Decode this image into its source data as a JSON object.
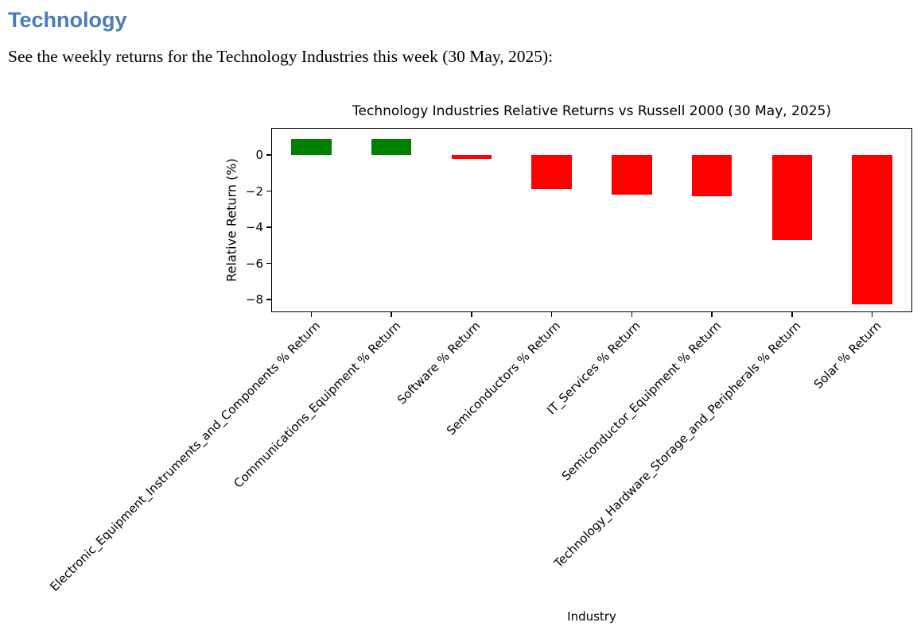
{
  "page": {
    "heading": "Technology",
    "heading_color": "#4a7cbd",
    "intro": "See the weekly returns for the Technology Industries this week (30 May, 2025):"
  },
  "chart_data": {
    "type": "bar",
    "title": "Technology Industries Relative Returns vs Russell 2000 (30 May, 2025)",
    "xlabel": "Industry",
    "ylabel": "Relative Return (%)",
    "categories": [
      "Electronic_Equipment_Instruments_and_Components % Return",
      "Communications_Equipment % Return",
      "Software % Return",
      "Semiconductors % Return",
      "IT_Services % Return",
      "Semiconductor_Equipment % Return",
      "Technology_Hardware_Storage_and_Peripherals % Return",
      "Solar % Return"
    ],
    "values": [
      0.9,
      0.87,
      -0.2,
      -1.9,
      -2.2,
      -2.3,
      -4.7,
      -8.25
    ],
    "yticks": [
      0,
      -2,
      -4,
      -6,
      -8
    ],
    "ylim": [
      -8.7,
      1.5
    ],
    "bar_width_fraction": 0.5,
    "positive_color": "#008000",
    "negative_color": "#ff0000",
    "x_tick_rotation_deg": 45,
    "grid": false,
    "legend": false
  }
}
